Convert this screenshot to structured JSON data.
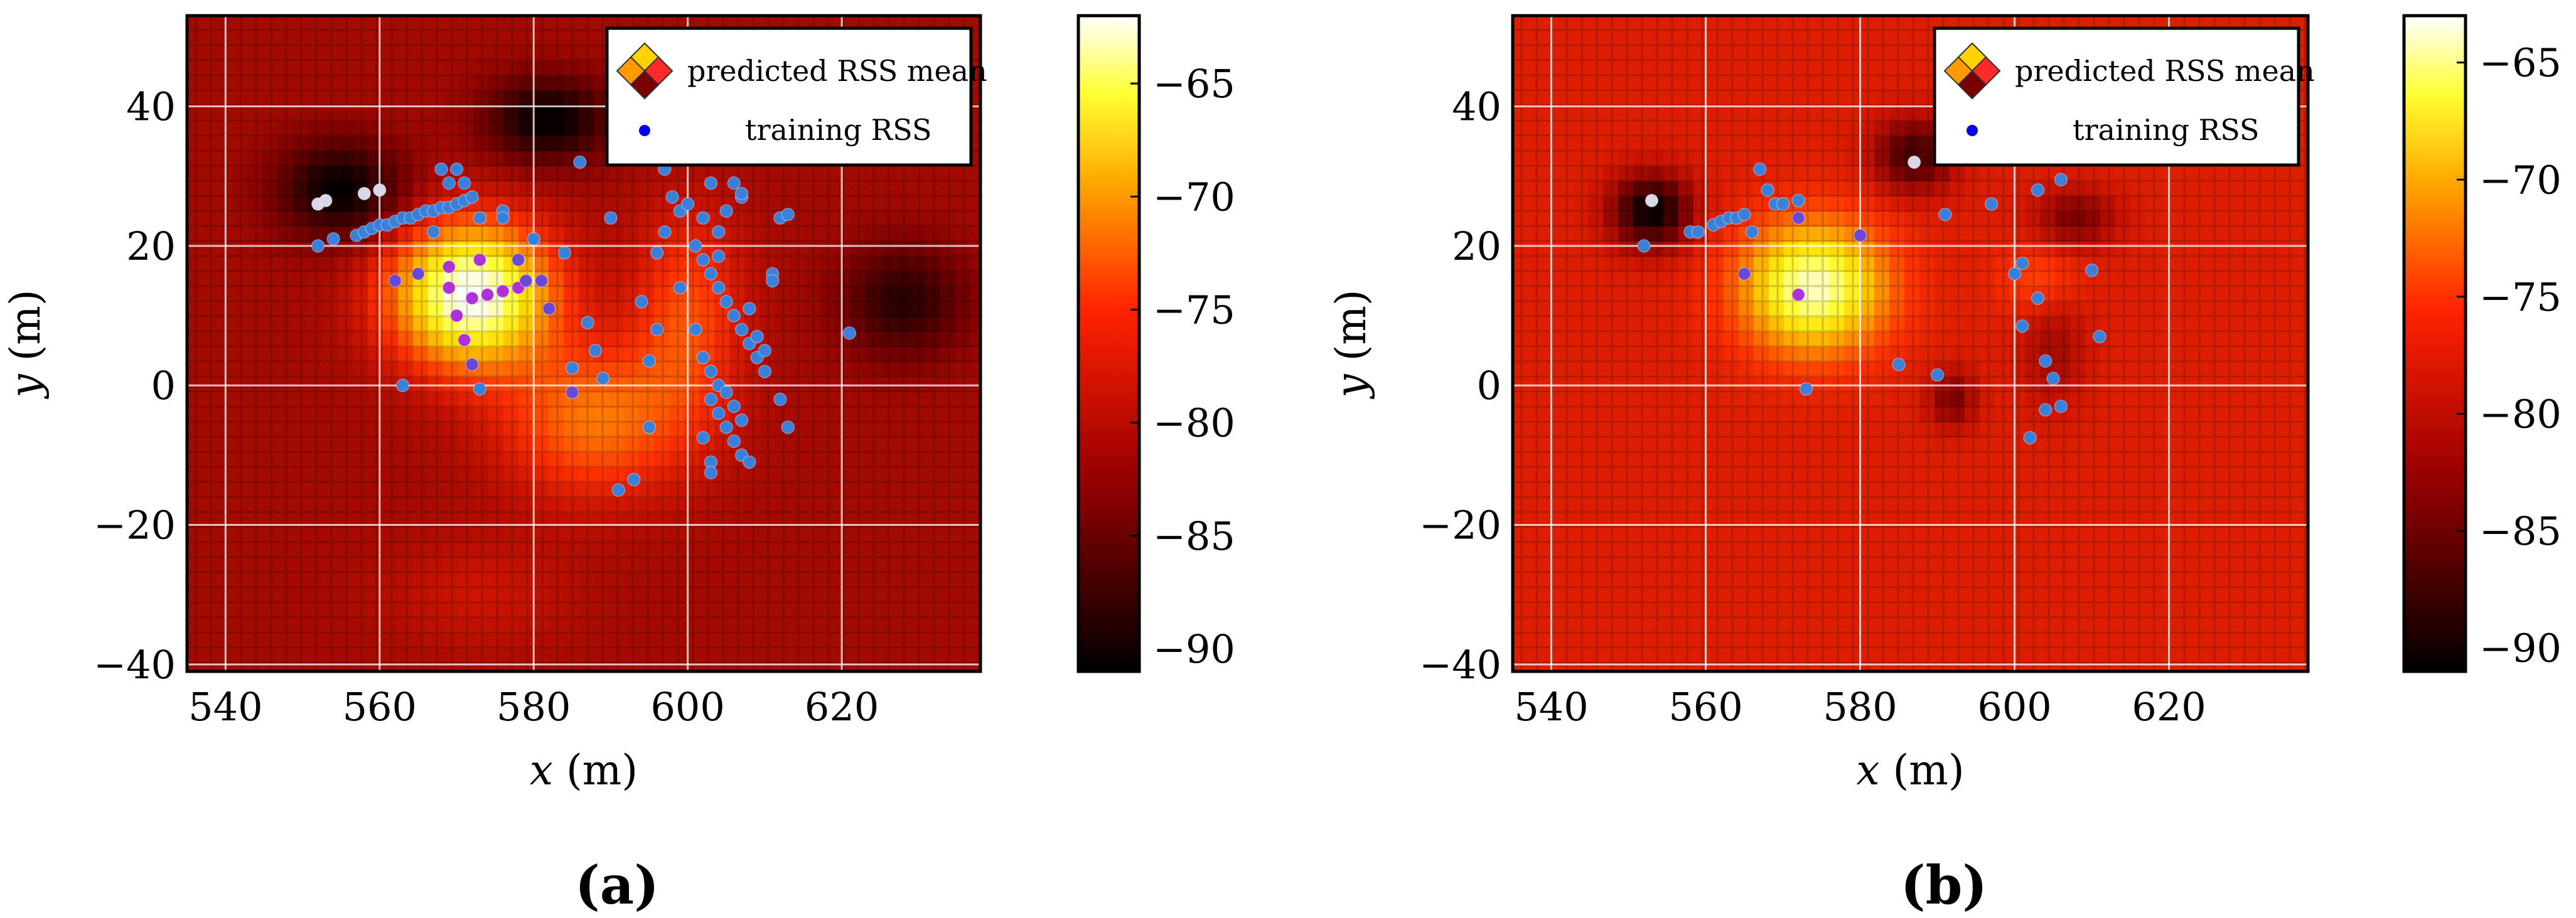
{
  "chart_data": [
    {
      "type": "heatmap",
      "panel_label": "(a)",
      "xlabel_var": "x",
      "xlabel_unit": " (m)",
      "ylabel_var": "y",
      "ylabel_unit": " (m)",
      "xlim": [
        535,
        638
      ],
      "ylim": [
        -41,
        53
      ],
      "xticks": [
        540,
        560,
        580,
        600,
        620
      ],
      "yticks": [
        -40,
        -20,
        0,
        20,
        40
      ],
      "grid": true,
      "legend_position": "top-right",
      "legend": [
        "predicted RSS mean",
        "training RSS"
      ],
      "colorbar": {
        "range": [
          -91,
          -62
        ],
        "ticks": [
          -65,
          -70,
          -75,
          -80,
          -85,
          -90
        ]
      },
      "field": {
        "base": -83,
        "bumps": [
          [
            572,
            13,
            10,
            10,
            21
          ],
          [
            588,
            -5,
            12,
            11,
            8
          ],
          [
            600,
            10,
            7,
            15,
            6
          ],
          [
            555,
            28,
            8,
            7,
            -8
          ],
          [
            582,
            38,
            8,
            6,
            -8
          ],
          [
            628,
            12,
            8,
            8,
            -6
          ],
          [
            600,
            40,
            6,
            6,
            -4
          ],
          [
            573,
            -30,
            12,
            8,
            2
          ]
        ]
      },
      "training_points": [
        [
          552,
          26
        ],
        [
          553,
          26.5
        ],
        [
          552,
          20
        ],
        [
          554,
          21
        ],
        [
          557,
          21.5
        ],
        [
          558,
          22
        ],
        [
          559,
          22.5
        ],
        [
          560,
          23
        ],
        [
          561,
          23
        ],
        [
          562,
          23.5
        ],
        [
          563,
          24
        ],
        [
          564,
          24
        ],
        [
          565,
          24.5
        ],
        [
          566,
          25
        ],
        [
          567,
          25
        ],
        [
          568,
          25.5
        ],
        [
          569,
          25.5
        ],
        [
          570,
          26
        ],
        [
          571,
          26.5
        ],
        [
          572,
          27
        ],
        [
          568,
          31
        ],
        [
          570,
          31
        ],
        [
          558,
          27.5
        ],
        [
          560,
          28
        ],
        [
          569,
          29
        ],
        [
          571,
          29
        ],
        [
          567,
          22
        ],
        [
          573,
          24
        ],
        [
          576,
          25
        ],
        [
          576,
          24
        ],
        [
          562,
          15
        ],
        [
          565,
          16
        ],
        [
          569,
          17
        ],
        [
          573,
          18
        ],
        [
          572,
          12.5
        ],
        [
          574,
          13
        ],
        [
          576,
          13.5
        ],
        [
          578,
          14
        ],
        [
          579,
          15
        ],
        [
          581,
          15
        ],
        [
          582,
          11
        ],
        [
          570,
          10
        ],
        [
          571,
          6.5
        ],
        [
          572,
          3
        ],
        [
          573,
          -0.5
        ],
        [
          563,
          0
        ],
        [
          569,
          14
        ],
        [
          578,
          18
        ],
        [
          580,
          21
        ],
        [
          584,
          19
        ],
        [
          585,
          2.5
        ],
        [
          585,
          -1
        ],
        [
          587,
          9
        ],
        [
          588,
          5
        ],
        [
          589,
          1
        ],
        [
          591,
          -15
        ],
        [
          593,
          -13.5
        ],
        [
          594,
          12
        ],
        [
          595,
          3.5
        ],
        [
          596,
          8
        ],
        [
          597,
          31
        ],
        [
          598,
          27
        ],
        [
          599,
          25
        ],
        [
          600,
          26
        ],
        [
          601,
          20
        ],
        [
          602,
          18
        ],
        [
          603,
          16
        ],
        [
          604,
          14
        ],
        [
          605,
          12
        ],
        [
          606,
          10
        ],
        [
          607,
          8
        ],
        [
          608,
          6
        ],
        [
          609,
          4
        ],
        [
          610,
          2
        ],
        [
          603,
          -2
        ],
        [
          604,
          -4
        ],
        [
          605,
          -6
        ],
        [
          606,
          -8
        ],
        [
          607,
          -10
        ],
        [
          603,
          -11
        ],
        [
          603,
          -12.5
        ],
        [
          602,
          -7.5
        ],
        [
          601,
          8
        ],
        [
          602,
          4
        ],
        [
          603,
          2
        ],
        [
          604,
          0
        ],
        [
          605,
          -1
        ],
        [
          606,
          -3
        ],
        [
          607,
          -5
        ],
        [
          608,
          -11
        ],
        [
          605,
          33
        ],
        [
          606,
          29
        ],
        [
          607,
          27
        ],
        [
          602,
          24
        ],
        [
          603,
          29
        ],
        [
          608,
          11
        ],
        [
          609,
          7
        ],
        [
          610,
          5
        ],
        [
          611,
          16
        ],
        [
          611,
          15
        ],
        [
          612,
          24
        ],
        [
          613,
          24.5
        ],
        [
          621,
          7.5
        ],
        [
          612,
          -2
        ],
        [
          613,
          -6
        ],
        [
          595,
          -6
        ],
        [
          597,
          22
        ],
        [
          596,
          19
        ],
        [
          604,
          22
        ],
        [
          605,
          25
        ],
        [
          590,
          24
        ],
        [
          586,
          32
        ],
        [
          607,
          27.5
        ],
        [
          604,
          18.5
        ],
        [
          599,
          14
        ]
      ]
    },
    {
      "type": "heatmap",
      "panel_label": "(b)",
      "xlabel_var": "x",
      "xlabel_unit": " (m)",
      "ylabel_var": "y",
      "ylabel_unit": " (m)",
      "xlim": [
        535,
        638
      ],
      "ylim": [
        -41,
        53
      ],
      "xticks": [
        540,
        560,
        580,
        600,
        620
      ],
      "yticks": [
        -40,
        -20,
        0,
        20,
        40
      ],
      "grid": true,
      "legend_position": "top-right",
      "legend": [
        "predicted RSS mean",
        "training RSS"
      ],
      "colorbar": {
        "range": [
          -91,
          -63
        ],
        "ticks": [
          -65,
          -70,
          -75,
          -80,
          -85,
          -90
        ]
      },
      "field": {
        "base": -80,
        "bumps": [
          [
            574,
            14,
            9,
            9,
            16
          ],
          [
            553,
            25,
            5,
            5,
            -11
          ],
          [
            587,
            33,
            5,
            5,
            -8
          ],
          [
            592,
            -2,
            3,
            4,
            -5
          ],
          [
            608,
            24,
            5,
            4,
            -5
          ],
          [
            605,
            5,
            4,
            8,
            -3
          ],
          [
            603,
            15,
            5,
            5,
            3
          ]
        ]
      },
      "training_points": [
        [
          553,
          26.5
        ],
        [
          552,
          20
        ],
        [
          558,
          22
        ],
        [
          559,
          22
        ],
        [
          561,
          23
        ],
        [
          562,
          23.5
        ],
        [
          563,
          24
        ],
        [
          564,
          24
        ],
        [
          565,
          24.5
        ],
        [
          567,
          31
        ],
        [
          568,
          28
        ],
        [
          569,
          26
        ],
        [
          570,
          26
        ],
        [
          572,
          26.5
        ],
        [
          572,
          24
        ],
        [
          566,
          22
        ],
        [
          565,
          16
        ],
        [
          572,
          13
        ],
        [
          580,
          21.5
        ],
        [
          573,
          -0.5
        ],
        [
          585,
          3
        ],
        [
          590,
          1.5
        ],
        [
          587,
          32
        ],
        [
          591,
          24.5
        ],
        [
          597,
          26
        ],
        [
          603,
          28
        ],
        [
          606,
          29.5
        ],
        [
          600,
          16
        ],
        [
          601,
          17.5
        ],
        [
          603,
          12.5
        ],
        [
          601,
          8.5
        ],
        [
          604,
          3.5
        ],
        [
          605,
          1
        ],
        [
          606,
          -3
        ],
        [
          604,
          -3.5
        ],
        [
          602,
          -7.5
        ],
        [
          610,
          16.5
        ],
        [
          611,
          7
        ]
      ]
    }
  ]
}
